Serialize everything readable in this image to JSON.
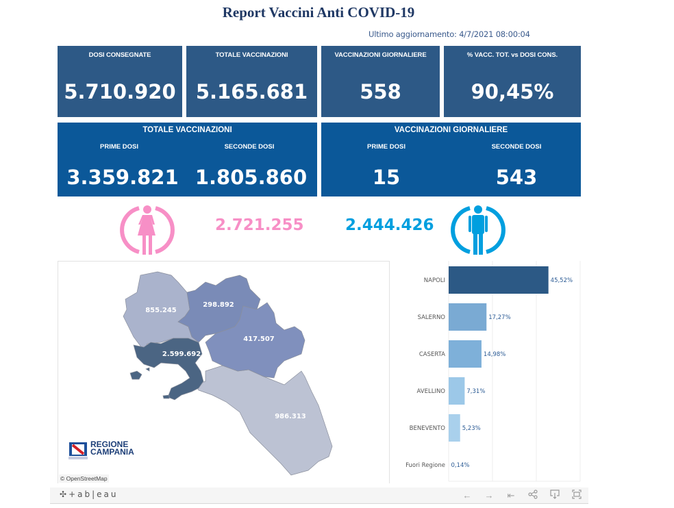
{
  "header": {
    "title": "Report Vaccini Anti COVID-19",
    "last_update": "Ultimo aggiornamento: 4/7/2021 08:00:04"
  },
  "kpi_cards": [
    {
      "label": "DOSI  CONSEGNATE",
      "value": "5.710.920"
    },
    {
      "label": "TOTALE VACCINAZIONI",
      "value": "5.165.681"
    },
    {
      "label": "VACCINAZIONI GIORNALIERE",
      "value": "558"
    },
    {
      "label": "% VACC. TOT. vs DOSI CONS.",
      "value": "90,45%"
    }
  ],
  "totale_vaccinazioni": {
    "title": "TOTALE VACCINAZIONI",
    "prime_label": "PRIME DOSI",
    "prime_value": "3.359.821",
    "seconde_label": "SECONDE DOSI",
    "seconde_value": "1.805.860"
  },
  "vaccinazioni_giornaliere": {
    "title": "VACCINAZIONI GIORNALIERE",
    "prime_label": "PRIME DOSI",
    "prime_value": "15",
    "seconde_label": "SECONDE DOSI",
    "seconde_value": "543"
  },
  "gender": {
    "female_value": "2.721.255",
    "female_color": "#f78fc6",
    "male_value": "2.444.426",
    "male_color": "#009fdf"
  },
  "map": {
    "provinces": [
      {
        "name": "Caserta",
        "value": "855.245",
        "color": "#aab3cc"
      },
      {
        "name": "Benevento",
        "value": "298.892",
        "color": "#7a8bb7"
      },
      {
        "name": "Avellino",
        "value": "417.507",
        "color": "#8090bd"
      },
      {
        "name": "Napoli",
        "value": "2.599.692",
        "color": "#4b6583"
      },
      {
        "name": "Salerno",
        "value": "986.313",
        "color": "#bcc2d3"
      }
    ],
    "logo_line1": "REGIONE",
    "logo_line2": "CAMPANIA",
    "attribution": "© OpenStreetMap"
  },
  "chart_data": {
    "type": "bar",
    "orientation": "horizontal",
    "title": "",
    "categories": [
      "NAPOLI",
      "SALERNO",
      "CASERTA",
      "AVELLINO",
      "BENEVENTO",
      "Fuori Regione"
    ],
    "values": [
      45.52,
      17.27,
      14.98,
      7.31,
      5.23,
      0.14
    ],
    "labels": [
      "45,52%",
      "17,27%",
      "14,98%",
      "7,31%",
      "5,23%",
      "0,14%"
    ],
    "colors": [
      "#2c5985",
      "#7aaad3",
      "#7eb0d9",
      "#9cc8e8",
      "#a9d0ec",
      "#b5d8f0"
    ],
    "xlim": [
      0,
      60
    ],
    "grid": true,
    "gridline_step": 20,
    "xlabel": "",
    "ylabel": ""
  },
  "toolbar": {
    "brand": "+ab|eau",
    "buttons": [
      {
        "name": "undo-button",
        "icon": "arrow-left-icon",
        "glyph": "←"
      },
      {
        "name": "redo-button",
        "icon": "arrow-right-icon",
        "glyph": "→"
      },
      {
        "name": "revert-button",
        "icon": "revert-icon",
        "glyph": "⇤"
      },
      {
        "name": "share-button",
        "icon": "share-icon",
        "glyph": "⋘"
      },
      {
        "name": "download-button",
        "icon": "download-icon",
        "glyph": "⭳"
      },
      {
        "name": "fullscreen-button",
        "icon": "fullscreen-icon",
        "glyph": "⛶"
      }
    ]
  }
}
